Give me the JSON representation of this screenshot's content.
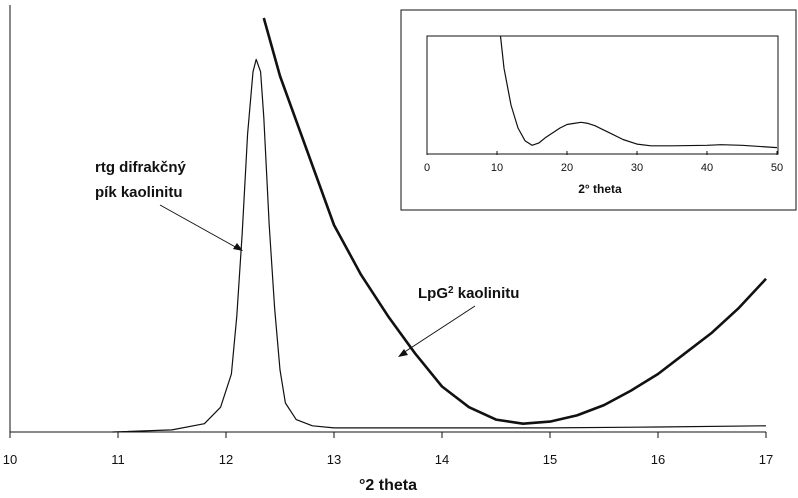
{
  "chart_data": [
    {
      "type": "line",
      "title": "",
      "xlabel": "°2 theta",
      "ylabel": "",
      "xlim": [
        10,
        17
      ],
      "ylim": [
        0,
        1
      ],
      "grid": false,
      "x_ticks": [
        "10",
        "11",
        "12",
        "13",
        "14",
        "15",
        "16",
        "17"
      ],
      "annotations": [
        "rtg difrakčný pík kaolinitu",
        "LpG² kaolinitu"
      ],
      "series": [
        {
          "name": "rtg difrakčný pík kaolinitu",
          "color": "#111111",
          "x": [
            10.95,
            11.5,
            11.8,
            11.95,
            12.05,
            12.1,
            12.15,
            12.2,
            12.25,
            12.28,
            12.32,
            12.35,
            12.4,
            12.45,
            12.5,
            12.55,
            12.65,
            12.8,
            13.0,
            14.0,
            15.0,
            16.0,
            17.0
          ],
          "y": [
            0.0,
            0.005,
            0.02,
            0.06,
            0.14,
            0.28,
            0.48,
            0.72,
            0.87,
            0.9,
            0.87,
            0.76,
            0.5,
            0.3,
            0.15,
            0.07,
            0.03,
            0.015,
            0.01,
            0.01,
            0.01,
            0.012,
            0.015
          ]
        },
        {
          "name": "LpG² kaolinitu",
          "color": "#111111",
          "x": [
            12.35,
            12.5,
            12.75,
            13.0,
            13.25,
            13.5,
            13.75,
            14.0,
            14.25,
            14.5,
            14.75,
            15.0,
            15.25,
            15.5,
            15.75,
            16.0,
            16.25,
            16.5,
            16.75,
            17.0
          ],
          "y": [
            1.0,
            0.86,
            0.68,
            0.5,
            0.38,
            0.28,
            0.19,
            0.11,
            0.06,
            0.03,
            0.02,
            0.025,
            0.04,
            0.065,
            0.1,
            0.14,
            0.19,
            0.24,
            0.3,
            0.37
          ]
        }
      ]
    },
    {
      "type": "line",
      "title": "",
      "xlabel": "2° theta",
      "ylabel": "",
      "xlim": [
        0,
        50
      ],
      "ylim": [
        0,
        1
      ],
      "grid": false,
      "x_ticks": [
        "0",
        "10",
        "20",
        "30",
        "40",
        "50"
      ],
      "series": [
        {
          "name": "",
          "color": "#111111",
          "x": [
            10.5,
            11,
            12,
            13,
            14,
            15,
            16,
            17,
            18,
            19,
            20,
            21,
            22,
            23,
            24,
            25,
            26,
            28,
            30,
            32,
            35,
            40,
            42,
            45,
            50
          ],
          "y": [
            1.0,
            0.72,
            0.4,
            0.2,
            0.09,
            0.05,
            0.07,
            0.12,
            0.16,
            0.2,
            0.23,
            0.24,
            0.25,
            0.24,
            0.22,
            0.19,
            0.16,
            0.1,
            0.06,
            0.045,
            0.045,
            0.05,
            0.055,
            0.05,
            0.03
          ]
        }
      ]
    }
  ]
}
